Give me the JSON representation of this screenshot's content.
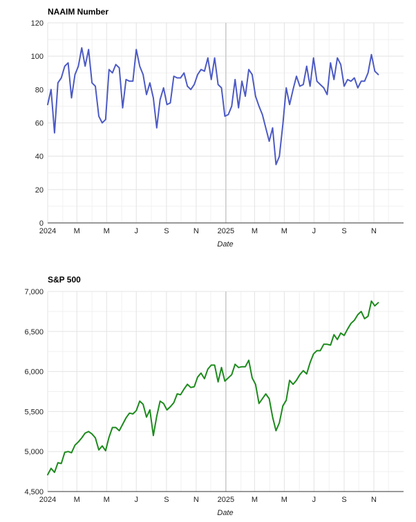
{
  "colors": {
    "naaim_line": "#4c5ac4",
    "sp500_line": "#1c8a1c",
    "gridline": "#e3e3e3",
    "axis_line": "#333333",
    "year_marker": "#c8c8c8"
  },
  "chart_data": [
    {
      "type": "line",
      "title": "NAAIM Number",
      "xlabel": "Date",
      "ylabel": "",
      "ylim": [
        0,
        120
      ],
      "yticks": [
        0,
        20,
        40,
        60,
        80,
        100,
        120
      ],
      "yticks_labels": [
        "0",
        "20",
        "40",
        "60",
        "80",
        "100",
        "120"
      ],
      "xlim": [
        "2024-01-01",
        "2025-12-31"
      ],
      "xticks": [
        {
          "date": "2024-01-01",
          "label": "2024"
        },
        {
          "date": "2024-03-01",
          "label": "M"
        },
        {
          "date": "2024-05-01",
          "label": "M"
        },
        {
          "date": "2024-07-01",
          "label": "J"
        },
        {
          "date": "2024-09-01",
          "label": "S"
        },
        {
          "date": "2024-11-01",
          "label": "N"
        },
        {
          "date": "2025-01-01",
          "label": "2025"
        },
        {
          "date": "2025-03-01",
          "label": "M"
        },
        {
          "date": "2025-05-01",
          "label": "M"
        },
        {
          "date": "2025-07-01",
          "label": "J"
        },
        {
          "date": "2025-09-01",
          "label": "S"
        },
        {
          "date": "2025-11-01",
          "label": "N"
        }
      ],
      "year_marker": "2025-01-01",
      "grid": true,
      "legend": "none",
      "series": [
        {
          "x": [
            "2024-01-01",
            "2024-01-08",
            "2024-01-15",
            "2024-01-22",
            "2024-01-29",
            "2024-02-05",
            "2024-02-12",
            "2024-02-19",
            "2024-02-26",
            "2024-03-04",
            "2024-03-11",
            "2024-03-18",
            "2024-03-25",
            "2024-04-01",
            "2024-04-08",
            "2024-04-15",
            "2024-04-22",
            "2024-04-29",
            "2024-05-06",
            "2024-05-13",
            "2024-05-20",
            "2024-05-27",
            "2024-06-03",
            "2024-06-10",
            "2024-06-17",
            "2024-06-24",
            "2024-07-01",
            "2024-07-08",
            "2024-07-15",
            "2024-07-22",
            "2024-07-29",
            "2024-08-05",
            "2024-08-12",
            "2024-08-19",
            "2024-08-26",
            "2024-09-02",
            "2024-09-09",
            "2024-09-16",
            "2024-09-23",
            "2024-09-30",
            "2024-10-07",
            "2024-10-14",
            "2024-10-21",
            "2024-10-28",
            "2024-11-04",
            "2024-11-11",
            "2024-11-18",
            "2024-11-25",
            "2024-12-02",
            "2024-12-09",
            "2024-12-16",
            "2024-12-23",
            "2024-12-30",
            "2025-01-06",
            "2025-01-13",
            "2025-01-20",
            "2025-01-27",
            "2025-02-03",
            "2025-02-10",
            "2025-02-17",
            "2025-02-24",
            "2025-03-03",
            "2025-03-10",
            "2025-03-17",
            "2025-03-24",
            "2025-03-31",
            "2025-04-07",
            "2025-04-14",
            "2025-04-21",
            "2025-04-28",
            "2025-05-05",
            "2025-05-12",
            "2025-05-19",
            "2025-05-26",
            "2025-06-02",
            "2025-06-09",
            "2025-06-16",
            "2025-06-23",
            "2025-06-30",
            "2025-07-07",
            "2025-07-14",
            "2025-07-21",
            "2025-07-28",
            "2025-08-04",
            "2025-08-11",
            "2025-08-18",
            "2025-08-25",
            "2025-09-01",
            "2025-09-08",
            "2025-09-15",
            "2025-09-22",
            "2025-09-29",
            "2025-10-06",
            "2025-10-13",
            "2025-10-20",
            "2025-10-27",
            "2025-11-03",
            "2025-11-10"
          ],
          "values": [
            71,
            80,
            54,
            84,
            87,
            94,
            96,
            75,
            89,
            94,
            105,
            94,
            104,
            84,
            82,
            64,
            60,
            62,
            92,
            90,
            95,
            93,
            69,
            86,
            85,
            85,
            104,
            94,
            89,
            77,
            84,
            75,
            57,
            74,
            81,
            71,
            72,
            88,
            87,
            87,
            90,
            82,
            80,
            83,
            89,
            92,
            91,
            99,
            86,
            99,
            83,
            81,
            64,
            65,
            70,
            86,
            69,
            85,
            76,
            92,
            89,
            76,
            70,
            65,
            57,
            49,
            57,
            35,
            40,
            59,
            81,
            71,
            80,
            88,
            82,
            83,
            94,
            82,
            99,
            85,
            83,
            81,
            77,
            96,
            86,
            99,
            95,
            82,
            86,
            85,
            87,
            81,
            85,
            85,
            90,
            101,
            91,
            89
          ]
        }
      ]
    },
    {
      "type": "line",
      "title": "S&P 500",
      "xlabel": "Date",
      "ylabel": "",
      "ylim": [
        4500,
        7000
      ],
      "yticks": [
        4500,
        5000,
        5500,
        6000,
        6500,
        7000
      ],
      "yticks_labels": [
        "4,500",
        "5,000",
        "5,500",
        "6,000",
        "6,500",
        "7,000"
      ],
      "xlim": [
        "2024-01-01",
        "2025-12-31"
      ],
      "xticks": [
        {
          "date": "2024-01-01",
          "label": "2024"
        },
        {
          "date": "2024-03-01",
          "label": "M"
        },
        {
          "date": "2024-05-01",
          "label": "M"
        },
        {
          "date": "2024-07-01",
          "label": "J"
        },
        {
          "date": "2024-09-01",
          "label": "S"
        },
        {
          "date": "2024-11-01",
          "label": "N"
        },
        {
          "date": "2025-01-01",
          "label": "2025"
        },
        {
          "date": "2025-03-01",
          "label": "M"
        },
        {
          "date": "2025-05-01",
          "label": "M"
        },
        {
          "date": "2025-07-01",
          "label": "J"
        },
        {
          "date": "2025-09-01",
          "label": "S"
        },
        {
          "date": "2025-11-01",
          "label": "N"
        }
      ],
      "year_marker": "2025-01-01",
      "grid": true,
      "legend": "none",
      "series": [
        {
          "x": [
            "2024-01-01",
            "2024-01-08",
            "2024-01-15",
            "2024-01-22",
            "2024-01-29",
            "2024-02-05",
            "2024-02-12",
            "2024-02-19",
            "2024-02-26",
            "2024-03-04",
            "2024-03-11",
            "2024-03-18",
            "2024-03-25",
            "2024-04-01",
            "2024-04-08",
            "2024-04-15",
            "2024-04-22",
            "2024-04-29",
            "2024-05-06",
            "2024-05-13",
            "2024-05-20",
            "2024-05-27",
            "2024-06-03",
            "2024-06-10",
            "2024-06-17",
            "2024-06-24",
            "2024-07-01",
            "2024-07-08",
            "2024-07-15",
            "2024-07-22",
            "2024-07-29",
            "2024-08-05",
            "2024-08-12",
            "2024-08-19",
            "2024-08-26",
            "2024-09-02",
            "2024-09-09",
            "2024-09-16",
            "2024-09-23",
            "2024-09-30",
            "2024-10-07",
            "2024-10-14",
            "2024-10-21",
            "2024-10-28",
            "2024-11-04",
            "2024-11-11",
            "2024-11-18",
            "2024-11-25",
            "2024-12-02",
            "2024-12-09",
            "2024-12-16",
            "2024-12-23",
            "2024-12-30",
            "2025-01-06",
            "2025-01-13",
            "2025-01-20",
            "2025-01-27",
            "2025-02-03",
            "2025-02-10",
            "2025-02-17",
            "2025-02-24",
            "2025-03-03",
            "2025-03-10",
            "2025-03-17",
            "2025-03-24",
            "2025-03-31",
            "2025-04-07",
            "2025-04-14",
            "2025-04-21",
            "2025-04-28",
            "2025-05-05",
            "2025-05-12",
            "2025-05-19",
            "2025-05-26",
            "2025-06-02",
            "2025-06-09",
            "2025-06-16",
            "2025-06-23",
            "2025-06-30",
            "2025-07-07",
            "2025-07-14",
            "2025-07-21",
            "2025-07-28",
            "2025-08-04",
            "2025-08-11",
            "2025-08-18",
            "2025-08-25",
            "2025-09-01",
            "2025-09-08",
            "2025-09-15",
            "2025-09-22",
            "2025-09-29",
            "2025-10-06",
            "2025-10-13",
            "2025-10-20",
            "2025-10-27",
            "2025-11-03",
            "2025-11-10"
          ],
          "values": [
            4710,
            4790,
            4740,
            4860,
            4850,
            4990,
            5000,
            4985,
            5080,
            5120,
            5170,
            5230,
            5250,
            5220,
            5170,
            5020,
            5070,
            5010,
            5180,
            5300,
            5300,
            5260,
            5340,
            5420,
            5480,
            5470,
            5510,
            5630,
            5590,
            5430,
            5520,
            5200,
            5440,
            5630,
            5600,
            5520,
            5560,
            5610,
            5720,
            5710,
            5780,
            5840,
            5800,
            5810,
            5930,
            5980,
            5910,
            6030,
            6080,
            6080,
            5870,
            6050,
            5880,
            5920,
            5960,
            6090,
            6050,
            6060,
            6060,
            6140,
            5920,
            5840,
            5600,
            5660,
            5720,
            5660,
            5430,
            5260,
            5360,
            5570,
            5640,
            5890,
            5840,
            5890,
            5960,
            6010,
            5970,
            6110,
            6220,
            6260,
            6260,
            6340,
            6340,
            6330,
            6460,
            6400,
            6480,
            6450,
            6530,
            6600,
            6640,
            6710,
            6750,
            6660,
            6690,
            6880,
            6820,
            6860
          ]
        }
      ]
    }
  ]
}
